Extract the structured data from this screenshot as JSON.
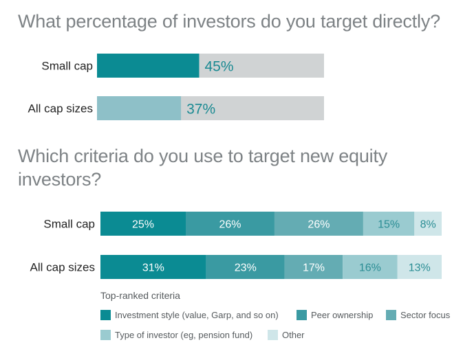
{
  "colors": {
    "track": "#d0d3d4",
    "chart1_fills": [
      "#0b8b93",
      "#8ec0c8"
    ],
    "series": [
      "#0b8b93",
      "#3a9aa2",
      "#64acb3",
      "#9acbd0",
      "#cfe6e9"
    ],
    "label_on_dark": "#ffffff",
    "label_on_light": "#2a8d94",
    "label_teal": "#1a8a92",
    "category_text": "#222222"
  },
  "chart_data": [
    {
      "type": "bar",
      "title": "What percentage of investors do you target directly?",
      "orientation": "horizontal",
      "categories": [
        "Small cap",
        "All cap sizes"
      ],
      "values": [
        45,
        37
      ],
      "value_labels": [
        "45%",
        "37%"
      ],
      "xlim": [
        0,
        100
      ]
    },
    {
      "type": "bar",
      "stacked": true,
      "orientation": "horizontal",
      "title": "Which criteria do you use to target new equity investors?",
      "categories": [
        "Small cap",
        "All cap sizes"
      ],
      "legend_title": "Top-ranked criteria",
      "series": [
        {
          "name": "Investment style (value, Garp, and so on)",
          "values": [
            25,
            31
          ]
        },
        {
          "name": "Peer ownership",
          "values": [
            26,
            23
          ]
        },
        {
          "name": "Sector focus",
          "values": [
            26,
            17
          ]
        },
        {
          "name": "Type of investor (eg, pension fund)",
          "values": [
            15,
            16
          ]
        },
        {
          "name": "Other",
          "values": [
            8,
            13
          ]
        }
      ],
      "value_labels": [
        [
          "25%",
          "26%",
          "26%",
          "15%",
          "8%"
        ],
        [
          "31%",
          "23%",
          "17%",
          "16%",
          "13%"
        ]
      ]
    }
  ]
}
